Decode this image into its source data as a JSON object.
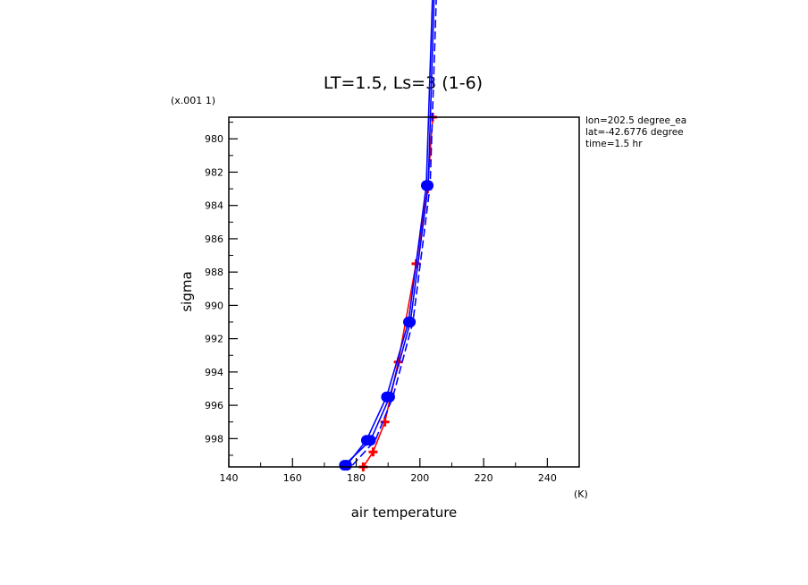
{
  "chart_data": {
    "type": "line",
    "title": "LT=1.5, Ls=3 (1-6)",
    "xlabel": "air temperature",
    "xunit": "(K)",
    "ylabel": "sigma",
    "yunit": "(x.001 1)",
    "xlim": [
      140,
      250
    ],
    "ylim": [
      999.7,
      978.7
    ],
    "xticks": [
      "140",
      "160",
      "180",
      "200",
      "220",
      "240"
    ],
    "yticks": [
      "980",
      "982",
      "984",
      "986",
      "988",
      "990",
      "992",
      "994",
      "996",
      "998"
    ],
    "annotations": [
      "lon=202.5 degree_ea",
      "lat=-42.6776 degree",
      "time=1.5 hr"
    ],
    "grid": false,
    "legend": "none",
    "series": [
      {
        "color": "#ff0000",
        "marker": "plus",
        "points": [
          [
            182.2,
            999.7
          ],
          [
            185.3,
            998.8
          ],
          [
            189.0,
            997.0
          ],
          [
            193.2,
            993.4
          ],
          [
            198.8,
            987.5
          ],
          [
            202.4,
            983.0
          ],
          [
            204.0,
            978.7
          ]
        ]
      },
      {
        "color": "#0000ff",
        "marker": "circle",
        "points": [
          [
            177.0,
            999.6
          ],
          [
            183.2,
            998.1
          ],
          [
            189.5,
            995.5
          ],
          [
            196.4,
            991.0
          ],
          [
            202.0,
            982.8
          ],
          [
            204.2,
            970.0
          ]
        ]
      },
      {
        "color": "#0000ff",
        "marker": "circle",
        "points": [
          [
            176.3,
            999.6
          ],
          [
            184.5,
            998.1
          ],
          [
            190.5,
            995.5
          ],
          [
            197.0,
            991.0
          ],
          [
            202.6,
            982.8
          ],
          [
            204.7,
            970.0
          ]
        ]
      },
      {
        "color": "#0000ff",
        "marker": "none",
        "dashed": true,
        "points": [
          [
            178.8,
            999.6
          ],
          [
            186.0,
            998.1
          ],
          [
            191.5,
            995.5
          ],
          [
            197.8,
            991.0
          ],
          [
            203.2,
            982.8
          ],
          [
            205.4,
            970.0
          ]
        ]
      }
    ]
  }
}
